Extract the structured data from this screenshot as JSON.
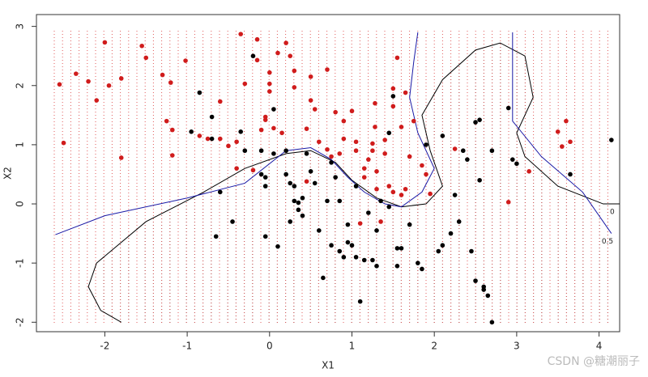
{
  "chart_data": {
    "type": "scatter",
    "xlabel": "X1",
    "ylabel": "X2",
    "xlim": [
      -2.83,
      4.25
    ],
    "ylim": [
      -2.16,
      3.2
    ],
    "xticks": [
      -2,
      -1,
      0,
      1,
      2,
      3,
      4
    ],
    "yticks": [
      -2,
      -1,
      0,
      1,
      2,
      3
    ],
    "series": [
      {
        "color": "#d01c1c",
        "x": [
          -2.55,
          -2.5,
          -2.35,
          -2.2,
          -2.1,
          -2.0,
          -1.95,
          -1.8,
          -1.8,
          -1.55,
          -1.5,
          -1.3,
          -1.25,
          -1.2,
          -1.18,
          -1.18,
          -1.02,
          -0.85,
          -0.75,
          -0.6,
          -0.6,
          -0.5,
          -0.4,
          -0.4,
          -0.35,
          -0.3,
          -0.2,
          -0.15,
          -0.15,
          -0.1,
          -0.05,
          -0.05,
          0.0,
          0.0,
          0.0,
          0.05,
          0.1,
          0.15,
          0.2,
          0.25,
          0.3,
          0.3,
          0.45,
          0.45,
          0.5,
          0.5,
          0.55,
          0.6,
          0.7,
          0.7,
          0.75,
          0.8,
          0.85,
          0.9,
          0.9,
          1.0,
          1.05,
          1.05,
          1.1,
          1.15,
          1.15,
          1.2,
          1.25,
          1.25,
          1.28,
          1.28,
          1.3,
          1.3,
          1.35,
          1.4,
          1.4,
          1.45,
          1.5,
          1.5,
          1.5,
          1.55,
          1.6,
          1.6,
          1.65,
          1.65,
          1.7,
          1.75,
          1.85,
          1.9,
          1.95,
          2.25,
          2.9,
          3.15,
          3.5,
          3.55,
          3.6,
          3.65
        ],
        "y": [
          2.02,
          1.03,
          2.2,
          2.07,
          1.75,
          2.73,
          2.0,
          2.12,
          0.78,
          2.67,
          2.47,
          2.18,
          1.4,
          2.05,
          1.25,
          0.82,
          2.42,
          1.15,
          1.1,
          1.73,
          1.1,
          0.98,
          1.05,
          0.6,
          2.87,
          2.03,
          0.57,
          2.43,
          2.78,
          1.25,
          1.47,
          1.42,
          2.03,
          1.9,
          2.22,
          1.28,
          2.55,
          1.2,
          2.72,
          2.5,
          2.25,
          1.97,
          1.27,
          0.38,
          2.15,
          1.75,
          1.6,
          1.05,
          2.27,
          0.92,
          0.8,
          1.55,
          0.85,
          1.4,
          1.1,
          1.57,
          1.05,
          0.9,
          -0.33,
          0.6,
          0.45,
          0.75,
          1.02,
          0.9,
          1.7,
          1.3,
          0.55,
          0.25,
          -0.3,
          1.08,
          0.85,
          0.3,
          1.95,
          1.65,
          0.2,
          2.47,
          1.3,
          0.15,
          1.88,
          0.25,
          0.8,
          1.4,
          0.65,
          0.5,
          0.17,
          0.93,
          0.03,
          0.55,
          1.22,
          0.97,
          1.4,
          1.05
        ]
      },
      {
        "color": "#000000",
        "x": [
          -0.85,
          -0.7,
          -0.7,
          -0.95,
          -0.65,
          -0.6,
          -0.45,
          -0.35,
          -0.3,
          -0.2,
          -0.1,
          -0.1,
          -0.05,
          -0.05,
          -0.05,
          0.05,
          0.05,
          0.1,
          0.2,
          0.2,
          0.25,
          0.25,
          0.3,
          0.3,
          0.35,
          0.35,
          0.4,
          0.4,
          0.45,
          0.5,
          0.55,
          0.6,
          0.65,
          0.7,
          0.75,
          0.75,
          0.8,
          0.85,
          0.85,
          0.9,
          0.95,
          0.95,
          1.0,
          1.05,
          1.05,
          1.1,
          1.15,
          1.2,
          1.25,
          1.3,
          1.3,
          1.35,
          1.45,
          1.45,
          1.5,
          1.55,
          1.55,
          1.6,
          1.7,
          1.8,
          1.85,
          1.9,
          2.05,
          2.1,
          2.1,
          2.2,
          2.25,
          2.3,
          2.35,
          2.4,
          2.45,
          2.5,
          2.5,
          2.55,
          2.55,
          2.6,
          2.6,
          2.65,
          2.7,
          2.7,
          2.9,
          2.95,
          3.0,
          3.65,
          4.15
        ],
        "y": [
          1.88,
          1.47,
          1.1,
          1.22,
          -0.55,
          0.2,
          -0.3,
          1.22,
          0.9,
          2.5,
          0.5,
          0.9,
          0.45,
          -0.55,
          0.3,
          1.6,
          0.85,
          -0.72,
          0.5,
          0.9,
          0.35,
          -0.3,
          0.05,
          0.3,
          0.02,
          -0.1,
          0.1,
          -0.2,
          0.85,
          0.55,
          0.35,
          -0.45,
          -1.25,
          0.05,
          0.7,
          -0.7,
          0.45,
          0.05,
          -0.8,
          -0.9,
          -0.35,
          -0.65,
          -0.7,
          -0.9,
          0.3,
          -1.65,
          -0.95,
          -0.15,
          -0.95,
          -0.45,
          -1.05,
          0.05,
          -0.05,
          1.2,
          1.82,
          -0.75,
          -1.05,
          -0.75,
          -0.35,
          -1.0,
          -1.1,
          1.0,
          -0.8,
          -0.7,
          1.15,
          -0.5,
          0.15,
          -0.3,
          0.9,
          0.75,
          -0.8,
          -1.3,
          1.38,
          1.42,
          0.4,
          -1.45,
          -1.4,
          -1.55,
          -2.0,
          0.9,
          1.62,
          0.75,
          0.68,
          0.5,
          1.08
        ]
      }
    ],
    "contours": [
      {
        "label": "0",
        "color": "#000000",
        "x": [
          -1.8,
          -2.05,
          -2.2,
          -2.1,
          -1.5,
          -0.8,
          -0.3,
          0.2,
          0.5,
          0.8,
          1.0,
          1.3,
          1.6,
          1.9,
          2.1,
          1.95,
          1.85,
          2.1,
          2.5,
          2.8,
          3.1,
          3.2,
          3.0,
          3.1,
          3.5,
          4.05,
          4.25
        ],
        "y": [
          -2.0,
          -1.8,
          -1.4,
          -1.0,
          -0.3,
          0.2,
          0.6,
          0.85,
          0.9,
          0.7,
          0.4,
          0.1,
          -0.05,
          0.0,
          0.3,
          0.9,
          1.5,
          2.1,
          2.6,
          2.72,
          2.5,
          1.8,
          1.2,
          0.8,
          0.3,
          0.0,
          0.0
        ]
      },
      {
        "label": "0.5",
        "color": "#1a1aa6",
        "x": [
          -2.6,
          -2.0,
          -1.0,
          -0.3,
          0.2,
          0.5,
          0.75,
          0.95,
          1.15,
          1.4,
          1.6,
          1.85,
          2.0,
          1.8,
          1.7,
          1.75,
          1.8,
          null,
          2.95,
          2.95,
          2.95,
          3.3,
          3.8,
          4.15
        ],
        "y": [
          -0.52,
          -0.2,
          0.1,
          0.35,
          0.9,
          0.95,
          0.75,
          0.45,
          0.2,
          0.0,
          -0.05,
          0.2,
          0.6,
          1.2,
          1.8,
          2.4,
          2.9,
          null,
          2.9,
          2.0,
          1.4,
          0.8,
          0.2,
          -0.5
        ]
      }
    ],
    "watermark": "CSDN @糖潮丽子"
  }
}
